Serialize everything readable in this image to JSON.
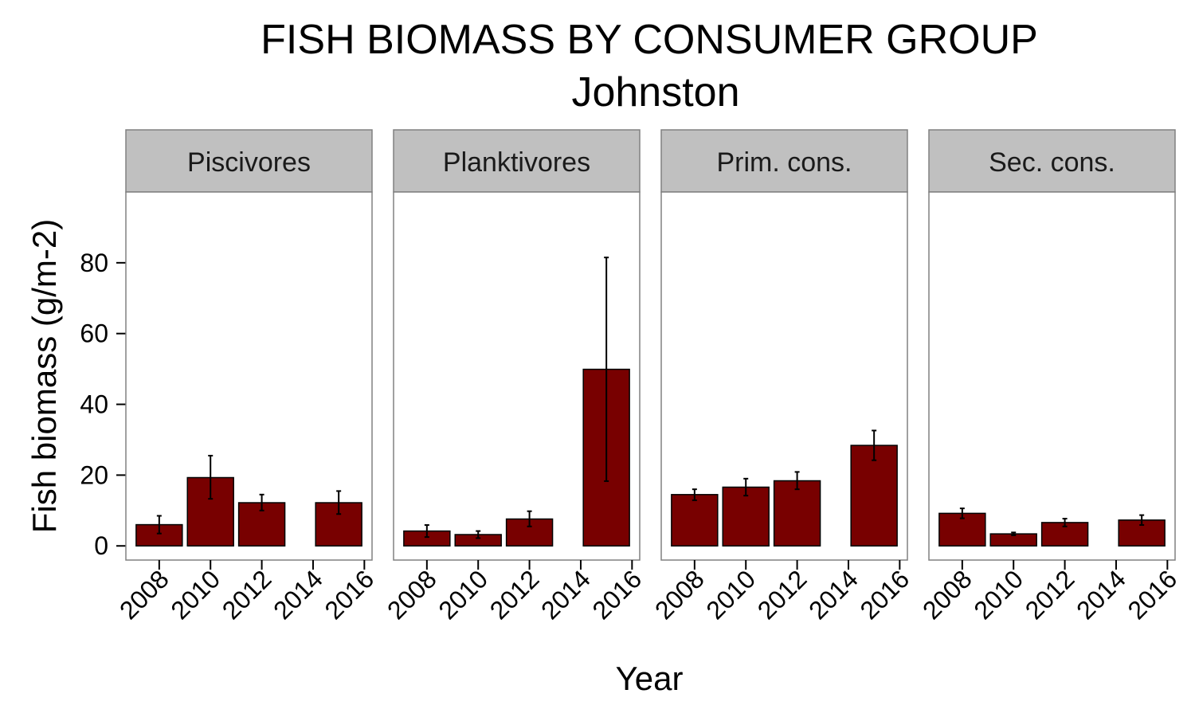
{
  "chart_data": {
    "type": "bar",
    "title": "FISH BIOMASS BY CONSUMER GROUP",
    "subtitle": "Johnston",
    "xlabel": "Year",
    "ylabel": "Fish biomass (g/m-2)",
    "ylim": [
      -4,
      100
    ],
    "yticks": [
      0,
      20,
      40,
      60,
      80
    ],
    "xlim": [
      2006.7,
      2016.3
    ],
    "xticks": [
      2008,
      2010,
      2012,
      2014,
      2016
    ],
    "bar_color": "#780000",
    "strip_color": "#c0c0c0",
    "grid": false,
    "panels": [
      {
        "name": "Piscivores",
        "bars": [
          {
            "x": 2008,
            "y": 6.0,
            "lo": 3.5,
            "hi": 8.5
          },
          {
            "x": 2010,
            "y": 19.3,
            "lo": 13.3,
            "hi": 25.5
          },
          {
            "x": 2012,
            "y": 12.2,
            "lo": 10.0,
            "hi": 14.5
          },
          {
            "x": 2015,
            "y": 12.2,
            "lo": 9.0,
            "hi": 15.5
          }
        ]
      },
      {
        "name": "Planktivores",
        "bars": [
          {
            "x": 2008,
            "y": 4.2,
            "lo": 2.5,
            "hi": 5.9
          },
          {
            "x": 2010,
            "y": 3.2,
            "lo": 2.2,
            "hi": 4.2
          },
          {
            "x": 2012,
            "y": 7.6,
            "lo": 5.5,
            "hi": 9.8
          },
          {
            "x": 2015,
            "y": 49.9,
            "lo": 18.3,
            "hi": 81.5
          }
        ]
      },
      {
        "name": "Prim. cons.",
        "bars": [
          {
            "x": 2008,
            "y": 14.5,
            "lo": 12.9,
            "hi": 16.0
          },
          {
            "x": 2010,
            "y": 16.6,
            "lo": 14.2,
            "hi": 19.0
          },
          {
            "x": 2012,
            "y": 18.4,
            "lo": 16.0,
            "hi": 20.9
          },
          {
            "x": 2015,
            "y": 28.4,
            "lo": 24.2,
            "hi": 32.6
          }
        ]
      },
      {
        "name": "Sec. cons.",
        "bars": [
          {
            "x": 2008,
            "y": 9.2,
            "lo": 7.8,
            "hi": 10.6
          },
          {
            "x": 2010,
            "y": 3.4,
            "lo": 3.0,
            "hi": 3.8
          },
          {
            "x": 2012,
            "y": 6.6,
            "lo": 5.5,
            "hi": 7.7
          },
          {
            "x": 2015,
            "y": 7.3,
            "lo": 5.9,
            "hi": 8.7
          }
        ]
      }
    ]
  }
}
